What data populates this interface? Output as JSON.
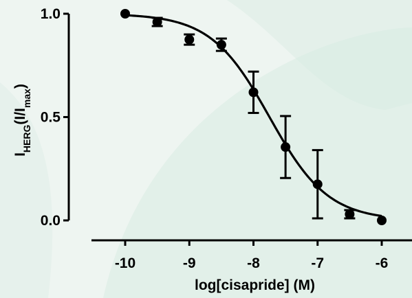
{
  "chart_data": {
    "type": "scatter",
    "title": "",
    "xlabel": "log[cisapride] (M)",
    "ylabel": {
      "main": "I",
      "main_sub": "HERG",
      "open": "(I/I",
      "open_sub": "max",
      "close": ")"
    },
    "xlim": [
      -10.2,
      -5.8
    ],
    "ylim": [
      0.0,
      1.0
    ],
    "x_ticks": [
      {
        "value": -10,
        "label": "-10"
      },
      {
        "value": -9,
        "label": "-9"
      },
      {
        "value": -8,
        "label": "-8"
      },
      {
        "value": -7,
        "label": "-7"
      },
      {
        "value": -6,
        "label": "-6"
      }
    ],
    "y_ticks": [
      {
        "value": 0.0,
        "label": "0.0"
      },
      {
        "value": 0.5,
        "label": "0.5"
      },
      {
        "value": 1.0,
        "label": "1.0"
      }
    ],
    "grid": false,
    "legend": "none",
    "series": [
      {
        "points": [
          {
            "x": -10.0,
            "y": 1.0,
            "err": 0.0
          },
          {
            "x": -9.5,
            "y": 0.96,
            "err": 0.02
          },
          {
            "x": -9.0,
            "y": 0.875,
            "err": 0.025
          },
          {
            "x": -8.5,
            "y": 0.85,
            "err": 0.03
          },
          {
            "x": -8.0,
            "y": 0.62,
            "err": 0.1
          },
          {
            "x": -7.5,
            "y": 0.355,
            "err": 0.15
          },
          {
            "x": -7.0,
            "y": 0.175,
            "err": 0.165
          },
          {
            "x": -6.5,
            "y": 0.03,
            "err": 0.02
          },
          {
            "x": -6.0,
            "y": 0.0,
            "err": 0.0
          }
        ]
      }
    ],
    "fit": {
      "model": "sigmoid",
      "top": 1.0,
      "bottom": 0.0,
      "log_ic50": -7.75,
      "hill": 0.95
    }
  },
  "colors": {
    "marker": "#000000",
    "line": "#000000",
    "background": "#eef5f1",
    "watermark": "#d8ebe2"
  }
}
